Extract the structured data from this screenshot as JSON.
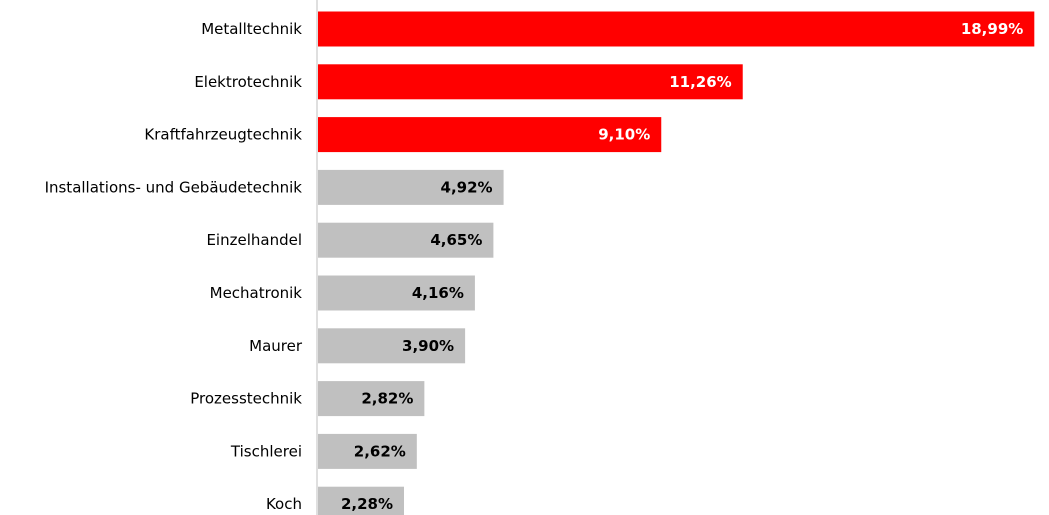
{
  "chart_data": {
    "type": "bar",
    "orientation": "horizontal",
    "categories": [
      "Metalltechnik",
      "Elektrotechnik",
      "Kraftfahrzeugtechnik",
      "Installations- und Gebäudetechnik",
      "Einzelhandel",
      "Mechatronik",
      "Maurer",
      "Prozesstechnik",
      "Tischlerei",
      "Koch"
    ],
    "values": [
      18.99,
      11.26,
      9.1,
      4.92,
      4.65,
      4.16,
      3.9,
      2.82,
      2.62,
      2.28
    ],
    "value_labels": [
      "18,99%",
      "11,26%",
      "9,10%",
      "4,92%",
      "4,65%",
      "4,16%",
      "3,90%",
      "2,82%",
      "2,62%",
      "2,28%"
    ],
    "highlighted": [
      true,
      true,
      true,
      false,
      false,
      false,
      false,
      false,
      false,
      false
    ],
    "title": "",
    "xlabel": "",
    "ylabel": "",
    "xlim": [
      0,
      19.3
    ],
    "grid": false,
    "legend": "none",
    "colors": {
      "highlight_bar": "#ff0000",
      "default_bar": "#c0c0c0",
      "highlight_label": "#ffffff",
      "default_label": "#000000",
      "axis": "#bfbfbf"
    }
  }
}
